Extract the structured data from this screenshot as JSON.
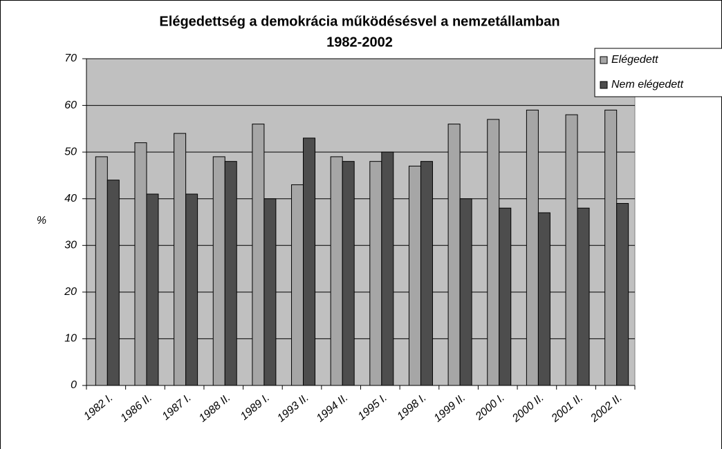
{
  "chart_data": {
    "type": "bar",
    "title": "Elégedettség a demokrácia működésésvel a nemzetállamban",
    "subtitle": "1982-2002",
    "y_label": "%",
    "categories": [
      "1982 I.",
      "1986 II.",
      "1987 I.",
      "1988 II.",
      "1989 I.",
      "1993 II.",
      "1994 II.",
      "1995 I.",
      "1998 I.",
      "1999 II.",
      "2000 I.",
      "2000 II.",
      "2001 II.",
      "2002 II."
    ],
    "series": [
      {
        "name": "Elégedett",
        "color": "#a6a6a6",
        "values": [
          49,
          52,
          54,
          49,
          56,
          43,
          49,
          48,
          47,
          56,
          57,
          59,
          58,
          59
        ]
      },
      {
        "name": "Nem elégedett",
        "color": "#4d4d4d",
        "values": [
          44,
          41,
          41,
          48,
          40,
          53,
          48,
          50,
          48,
          40,
          38,
          37,
          38,
          39
        ]
      }
    ],
    "ylim": [
      0,
      70
    ],
    "yticks": [
      0,
      10,
      20,
      30,
      40,
      50,
      60,
      70
    ],
    "grid": true,
    "legend": "top-right"
  }
}
